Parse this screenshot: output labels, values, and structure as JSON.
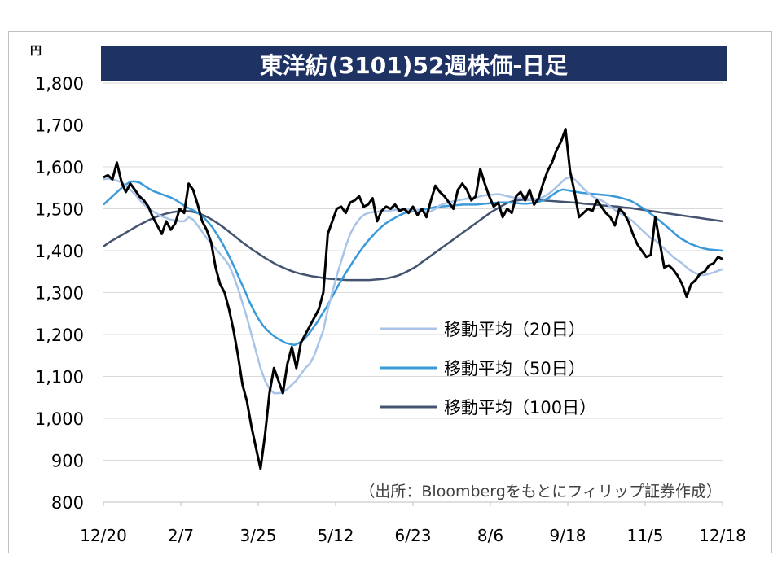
{
  "chart_data": {
    "type": "line",
    "title": "東洋紡(3101)52週株価-日足",
    "unit_label": "円",
    "source_note": "（出所：Bloombergをもとにフィリップ証券作成）",
    "ylim": [
      800,
      1800
    ],
    "y_ticks": [
      800,
      900,
      1000,
      1100,
      1200,
      1300,
      1400,
      1500,
      1600,
      1700,
      1800
    ],
    "y_tick_labels": [
      "800",
      "900",
      "1,000",
      "1,100",
      "1,200",
      "1,300",
      "1,400",
      "1,500",
      "1,600",
      "1,700",
      "1,800"
    ],
    "x_tick_labels": [
      "12/20",
      "2/7",
      "3/25",
      "5/12",
      "6/23",
      "8/6",
      "9/18",
      "11/5",
      "12/18"
    ],
    "grid": true,
    "legend_position": "inside-right",
    "colors": {
      "title_bg": "#1f3264",
      "title_text": "#ffffff",
      "price": "#000000",
      "ma20": "#a9c4e8",
      "ma50": "#3a9ad9",
      "ma100": "#44536f",
      "grid": "#d9d9d9"
    },
    "series": [
      {
        "name": "price",
        "values": [
          1575,
          1580,
          1570,
          1610,
          1565,
          1540,
          1560,
          1545,
          1530,
          1520,
          1505,
          1480,
          1460,
          1440,
          1470,
          1450,
          1465,
          1500,
          1490,
          1560,
          1545,
          1510,
          1470,
          1450,
          1420,
          1360,
          1320,
          1300,
          1260,
          1210,
          1150,
          1080,
          1040,
          980,
          930,
          880,
          960,
          1060,
          1120,
          1090,
          1060,
          1130,
          1170,
          1120,
          1180,
          1200,
          1220,
          1240,
          1260,
          1300,
          1440,
          1470,
          1500,
          1505,
          1490,
          1515,
          1520,
          1530,
          1505,
          1510,
          1525,
          1470,
          1495,
          1505,
          1500,
          1510,
          1495,
          1500,
          1490,
          1505,
          1485,
          1500,
          1480,
          1520,
          1555,
          1540,
          1530,
          1515,
          1500,
          1545,
          1560,
          1545,
          1520,
          1530,
          1595,
          1560,
          1530,
          1505,
          1515,
          1480,
          1500,
          1490,
          1530,
          1540,
          1520,
          1545,
          1510,
          1525,
          1560,
          1590,
          1610,
          1640,
          1660,
          1690,
          1590,
          1540,
          1480,
          1490,
          1500,
          1495,
          1520,
          1505,
          1490,
          1480,
          1460,
          1500,
          1490,
          1470,
          1440,
          1415,
          1400,
          1385,
          1390,
          1480,
          1420,
          1360,
          1365,
          1355,
          1340,
          1320,
          1290,
          1320,
          1330,
          1345,
          1350,
          1365,
          1370,
          1385,
          1380
        ]
      },
      {
        "name": "移動平均（20日）",
        "values": [
          1570,
          1572,
          1570,
          1567,
          1563,
          1555,
          1545,
          1535,
          1522,
          1510,
          1502,
          1494,
          1488,
          1482,
          1478,
          1474,
          1472,
          1470,
          1470,
          1480,
          1474,
          1460,
          1445,
          1430,
          1418,
          1405,
          1392,
          1380,
          1365,
          1340,
          1310,
          1275,
          1240,
          1200,
          1160,
          1120,
          1090,
          1070,
          1060,
          1060,
          1062,
          1070,
          1080,
          1090,
          1105,
          1120,
          1130,
          1150,
          1180,
          1210,
          1260,
          1300,
          1340,
          1375,
          1410,
          1440,
          1460,
          1475,
          1485,
          1490,
          1492,
          1493,
          1494,
          1495,
          1496,
          1497,
          1497,
          1498,
          1498,
          1497,
          1496,
          1495,
          1494,
          1494,
          1500,
          1508,
          1512,
          1515,
          1518,
          1520,
          1522,
          1524,
          1525,
          1526,
          1530,
          1532,
          1533,
          1534,
          1535,
          1533,
          1530,
          1528,
          1526,
          1525,
          1524,
          1523,
          1523,
          1524,
          1528,
          1534,
          1542,
          1552,
          1562,
          1572,
          1575,
          1570,
          1560,
          1548,
          1538,
          1530,
          1524,
          1520,
          1514,
          1505,
          1497,
          1490,
          1485,
          1478,
          1470,
          1460,
          1450,
          1440,
          1430,
          1425,
          1415,
          1405,
          1395,
          1385,
          1377,
          1370,
          1360,
          1352,
          1346,
          1342,
          1342,
          1345,
          1348,
          1352,
          1356
        ]
      },
      {
        "name": "移動平均（50日）",
        "values": [
          1510,
          1520,
          1530,
          1540,
          1550,
          1558,
          1565,
          1565,
          1562,
          1555,
          1548,
          1542,
          1538,
          1534,
          1530,
          1526,
          1520,
          1513,
          1505,
          1500,
          1495,
          1488,
          1480,
          1468,
          1455,
          1438,
          1420,
          1400,
          1378,
          1355,
          1330,
          1306,
          1280,
          1258,
          1238,
          1222,
          1210,
          1200,
          1192,
          1186,
          1180,
          1177,
          1175,
          1180,
          1188,
          1200,
          1215,
          1230,
          1248,
          1265,
          1285,
          1305,
          1325,
          1343,
          1360,
          1377,
          1393,
          1408,
          1422,
          1434,
          1446,
          1456,
          1465,
          1472,
          1478,
          1484,
          1489,
          1492,
          1494,
          1496,
          1498,
          1500,
          1502,
          1504,
          1505,
          1506,
          1507,
          1508,
          1509,
          1510,
          1510,
          1510,
          1510,
          1511,
          1512,
          1513,
          1514,
          1515,
          1515,
          1515,
          1514,
          1513,
          1512,
          1512,
          1513,
          1515,
          1518,
          1522,
          1528,
          1536,
          1543,
          1546,
          1544,
          1542,
          1540,
          1538,
          1537,
          1536,
          1535,
          1534,
          1533,
          1532,
          1530,
          1528,
          1525,
          1522,
          1518,
          1512,
          1505,
          1498,
          1490,
          1482,
          1473,
          1464,
          1455,
          1446,
          1436,
          1428,
          1422,
          1416,
          1412,
          1408,
          1405,
          1403,
          1402,
          1401,
          1400
        ]
      },
      {
        "name": "移動平均（100日）",
        "values": [
          1410,
          1420,
          1428,
          1436,
          1444,
          1452,
          1460,
          1467,
          1474,
          1480,
          1485,
          1489,
          1492,
          1494,
          1495,
          1494,
          1491,
          1486,
          1480,
          1472,
          1463,
          1453,
          1442,
          1431,
          1420,
          1410,
          1400,
          1391,
          1382,
          1374,
          1366,
          1360,
          1354,
          1349,
          1345,
          1342,
          1339,
          1337,
          1335,
          1333,
          1332,
          1331,
          1330,
          1330,
          1330,
          1330,
          1330,
          1331,
          1332,
          1334,
          1337,
          1341,
          1347,
          1354,
          1362,
          1372,
          1382,
          1392,
          1402,
          1412,
          1422,
          1432,
          1442,
          1452,
          1462,
          1472,
          1482,
          1492,
          1500,
          1508,
          1515,
          1519,
          1521,
          1522,
          1522,
          1521,
          1520,
          1519,
          1518,
          1517,
          1516,
          1515,
          1514,
          1512,
          1511,
          1510,
          1508,
          1507,
          1506,
          1505,
          1503,
          1502,
          1500,
          1498,
          1496,
          1494,
          1492,
          1490,
          1488,
          1486,
          1484,
          1482,
          1480,
          1478,
          1476,
          1474,
          1472,
          1470
        ]
      }
    ],
    "legend": [
      {
        "label": "移動平均（20日）"
      },
      {
        "label": "移動平均（50日）"
      },
      {
        "label": "移動平均（100日）"
      }
    ]
  }
}
